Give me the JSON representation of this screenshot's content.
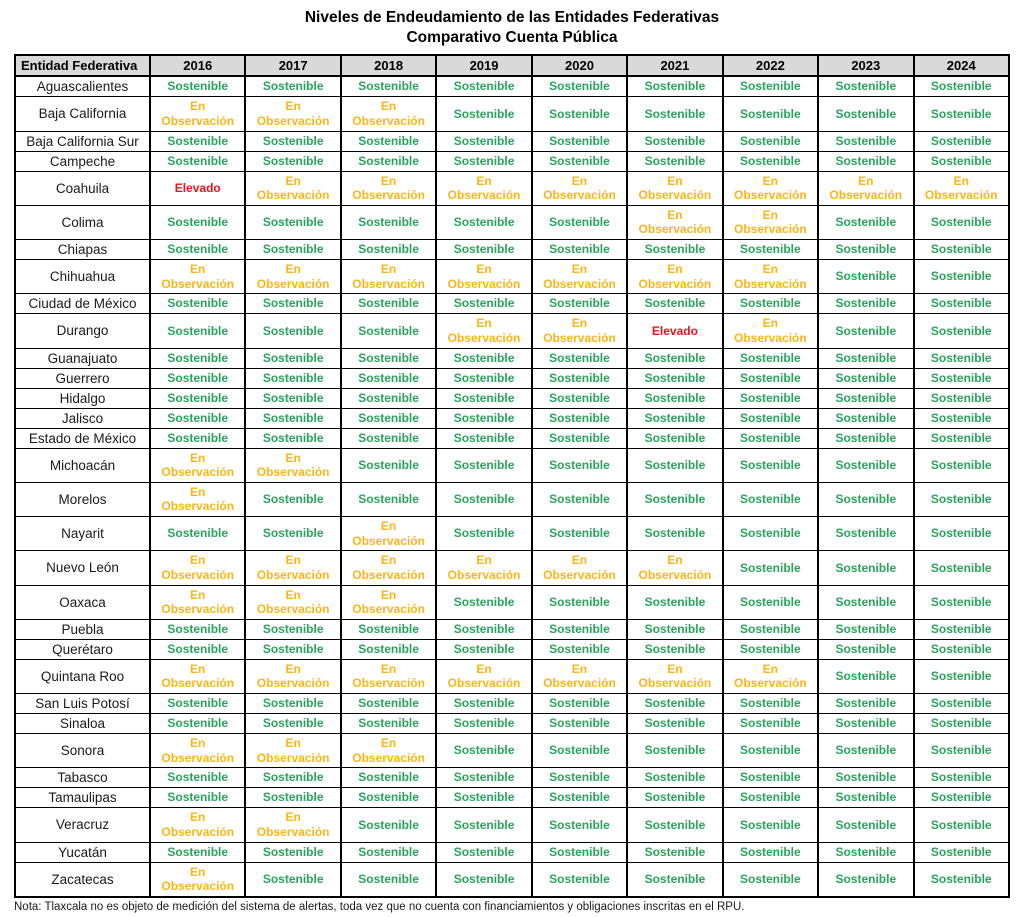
{
  "title_line1": "Niveles de Endeudamiento de las Entidades Federativas",
  "title_line2": "Comparativo Cuenta Pública",
  "note": "Nota: Tlaxcala no es objeto de medición del sistema de alertas, toda vez que no cuenta con financiamientos y obligaciones inscritas en el RPU.",
  "status_labels": {
    "S": "Sostenible",
    "EO": "En Observación",
    "EL": "Elevado"
  },
  "colors": {
    "sostenible": "#2aa45c",
    "en_observacion": "#fbb616",
    "elevado": "#e8131c",
    "header_bg": "#d9d9d9",
    "border": "#000000"
  },
  "table": {
    "header": [
      "Entidad Federativa",
      "2016",
      "2017",
      "2018",
      "2019",
      "2020",
      "2021",
      "2022",
      "2023",
      "2024"
    ],
    "rows": [
      {
        "state": "Aguascalientes",
        "values": [
          "S",
          "S",
          "S",
          "S",
          "S",
          "S",
          "S",
          "S",
          "S"
        ]
      },
      {
        "state": "Baja California",
        "values": [
          "EO",
          "EO",
          "EO",
          "S",
          "S",
          "S",
          "S",
          "S",
          "S"
        ]
      },
      {
        "state": "Baja California Sur",
        "values": [
          "S",
          "S",
          "S",
          "S",
          "S",
          "S",
          "S",
          "S",
          "S"
        ]
      },
      {
        "state": "Campeche",
        "values": [
          "S",
          "S",
          "S",
          "S",
          "S",
          "S",
          "S",
          "S",
          "S"
        ]
      },
      {
        "state": "Coahuila",
        "values": [
          "EL",
          "EO",
          "EO",
          "EO",
          "EO",
          "EO",
          "EO",
          "EO",
          "EO"
        ]
      },
      {
        "state": "Colima",
        "values": [
          "S",
          "S",
          "S",
          "S",
          "S",
          "EO",
          "EO",
          "S",
          "S"
        ]
      },
      {
        "state": "Chiapas",
        "values": [
          "S",
          "S",
          "S",
          "S",
          "S",
          "S",
          "S",
          "S",
          "S"
        ]
      },
      {
        "state": "Chihuahua",
        "values": [
          "EO",
          "EO",
          "EO",
          "EO",
          "EO",
          "EO",
          "EO",
          "S",
          "S"
        ]
      },
      {
        "state": "Ciudad de México",
        "values": [
          "S",
          "S",
          "S",
          "S",
          "S",
          "S",
          "S",
          "S",
          "S"
        ]
      },
      {
        "state": "Durango",
        "values": [
          "S",
          "S",
          "S",
          "EO",
          "EO",
          "EL",
          "EO",
          "S",
          "S"
        ]
      },
      {
        "state": "Guanajuato",
        "values": [
          "S",
          "S",
          "S",
          "S",
          "S",
          "S",
          "S",
          "S",
          "S"
        ]
      },
      {
        "state": "Guerrero",
        "values": [
          "S",
          "S",
          "S",
          "S",
          "S",
          "S",
          "S",
          "S",
          "S"
        ]
      },
      {
        "state": "Hidalgo",
        "values": [
          "S",
          "S",
          "S",
          "S",
          "S",
          "S",
          "S",
          "S",
          "S"
        ]
      },
      {
        "state": "Jalisco",
        "values": [
          "S",
          "S",
          "S",
          "S",
          "S",
          "S",
          "S",
          "S",
          "S"
        ]
      },
      {
        "state": "Estado de México",
        "values": [
          "S",
          "S",
          "S",
          "S",
          "S",
          "S",
          "S",
          "S",
          "S"
        ]
      },
      {
        "state": "Michoacán",
        "values": [
          "EO",
          "EO",
          "S",
          "S",
          "S",
          "S",
          "S",
          "S",
          "S"
        ]
      },
      {
        "state": "Morelos",
        "values": [
          "EO",
          "S",
          "S",
          "S",
          "S",
          "S",
          "S",
          "S",
          "S"
        ]
      },
      {
        "state": "Nayarit",
        "values": [
          "S",
          "S",
          "EO",
          "S",
          "S",
          "S",
          "S",
          "S",
          "S"
        ]
      },
      {
        "state": "Nuevo León",
        "values": [
          "EO",
          "EO",
          "EO",
          "EO",
          "EO",
          "EO",
          "S",
          "S",
          "S"
        ]
      },
      {
        "state": "Oaxaca",
        "values": [
          "EO",
          "EO",
          "EO",
          "S",
          "S",
          "S",
          "S",
          "S",
          "S"
        ]
      },
      {
        "state": "Puebla",
        "values": [
          "S",
          "S",
          "S",
          "S",
          "S",
          "S",
          "S",
          "S",
          "S"
        ]
      },
      {
        "state": "Querétaro",
        "values": [
          "S",
          "S",
          "S",
          "S",
          "S",
          "S",
          "S",
          "S",
          "S"
        ]
      },
      {
        "state": "Quintana Roo",
        "values": [
          "EO",
          "EO",
          "EO",
          "EO",
          "EO",
          "EO",
          "EO",
          "S",
          "S"
        ]
      },
      {
        "state": "San Luis Potosí",
        "values": [
          "S",
          "S",
          "S",
          "S",
          "S",
          "S",
          "S",
          "S",
          "S"
        ]
      },
      {
        "state": "Sinaloa",
        "values": [
          "S",
          "S",
          "S",
          "S",
          "S",
          "S",
          "S",
          "S",
          "S"
        ]
      },
      {
        "state": "Sonora",
        "values": [
          "EO",
          "EO",
          "EO",
          "S",
          "S",
          "S",
          "S",
          "S",
          "S"
        ]
      },
      {
        "state": "Tabasco",
        "values": [
          "S",
          "S",
          "S",
          "S",
          "S",
          "S",
          "S",
          "S",
          "S"
        ]
      },
      {
        "state": "Tamaulipas",
        "values": [
          "S",
          "S",
          "S",
          "S",
          "S",
          "S",
          "S",
          "S",
          "S"
        ]
      },
      {
        "state": "Veracruz",
        "values": [
          "EO",
          "EO",
          "S",
          "S",
          "S",
          "S",
          "S",
          "S",
          "S"
        ]
      },
      {
        "state": "Yucatán",
        "values": [
          "S",
          "S",
          "S",
          "S",
          "S",
          "S",
          "S",
          "S",
          "S"
        ]
      },
      {
        "state": "Zacatecas",
        "values": [
          "EO",
          "S",
          "S",
          "S",
          "S",
          "S",
          "S",
          "S",
          "S"
        ]
      }
    ]
  }
}
